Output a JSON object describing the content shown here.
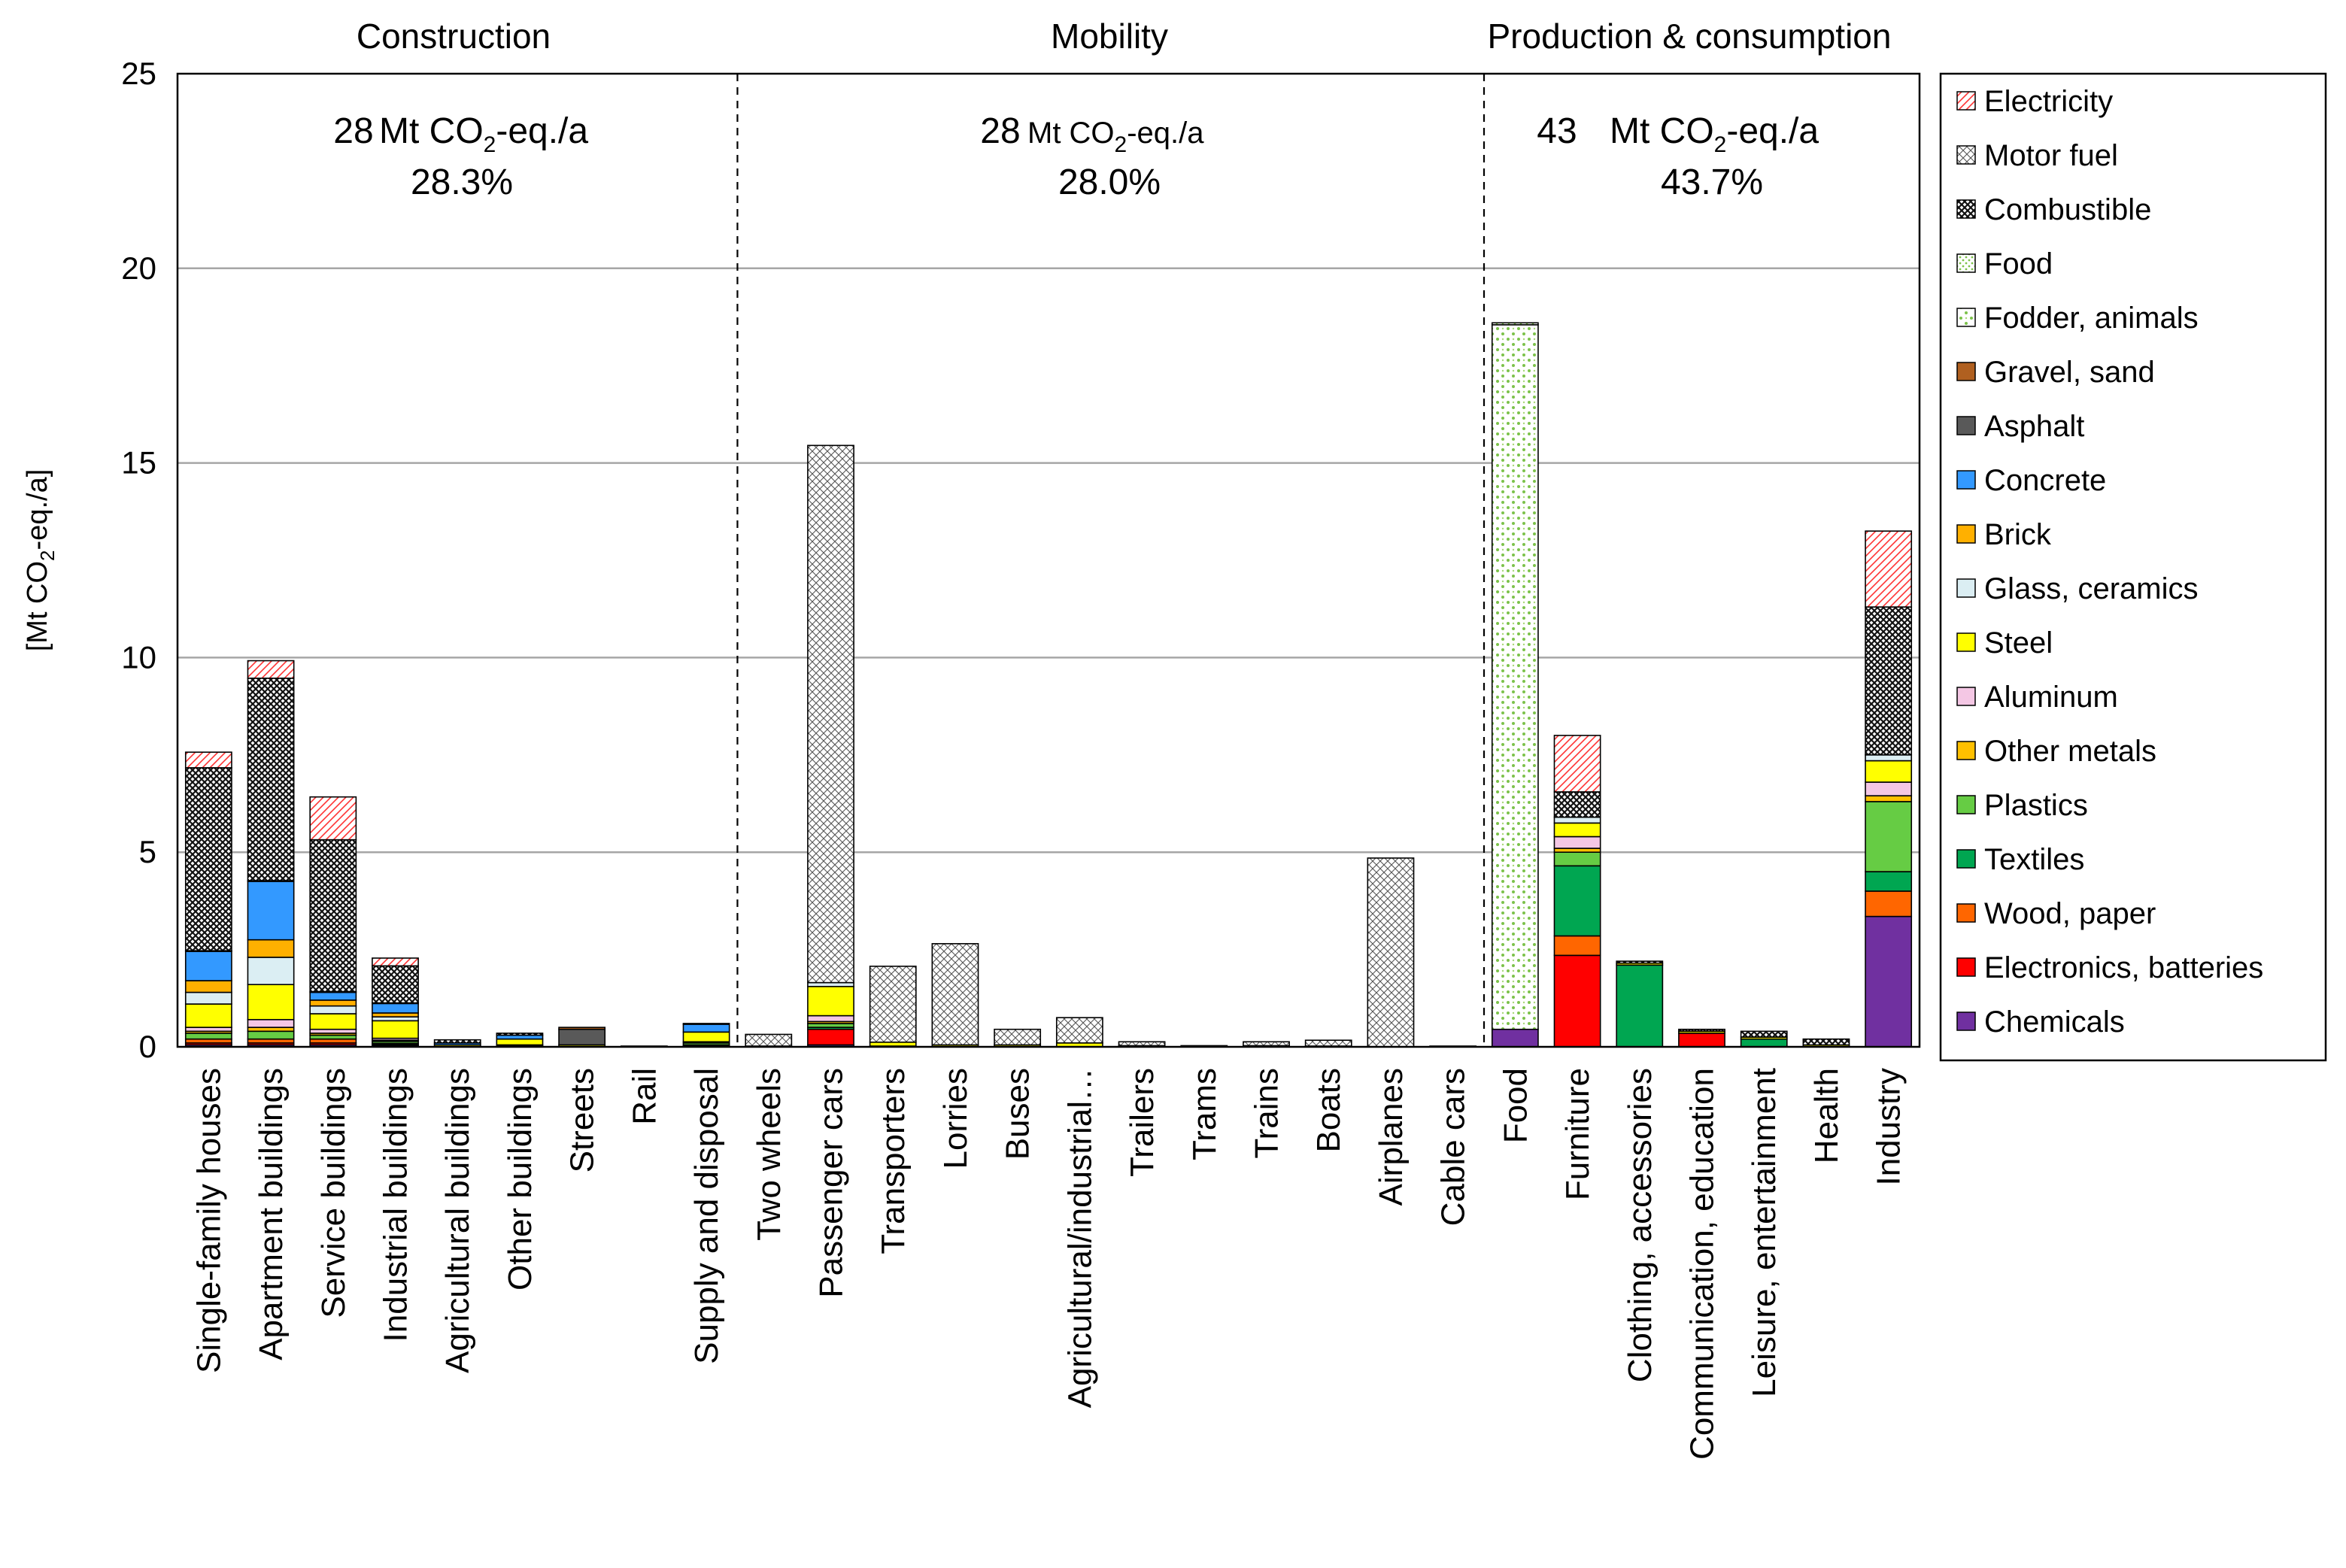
{
  "chart_data": {
    "type": "bar",
    "stacked": true,
    "ylabel": "[Mt CO2-eq./a]",
    "ylabel_parts": {
      "a": "[Mt CO",
      "sub": "2",
      "b": "-eq./a]"
    },
    "ylim": [
      0,
      25
    ],
    "yticks": [
      "0",
      "5",
      "10",
      "15",
      "20",
      "25"
    ],
    "grid": true,
    "legend_position": "right",
    "categories": [
      "Single-family houses",
      "Apartment buildings",
      "Service buildings",
      "Industrial buildings",
      "Agricultural buildings",
      "Other buildings",
      "Streets",
      "Rail",
      "Supply and disposal",
      "Two wheels",
      "Passenger cars",
      "Transporters",
      "Lorries",
      "Buses",
      "Agricultural/industrial…",
      "Trailers",
      "Trams",
      "Trains",
      "Boats",
      "Airplanes",
      "Cable cars",
      "Food",
      "Furniture",
      "Clothing, accessories",
      "Communication, education",
      "Leisure, entertainment",
      "Health",
      "Industry"
    ],
    "groups": [
      {
        "name": "Construction",
        "total_value": "28",
        "unit_a": "Mt CO",
        "unit_sub": "2",
        "unit_b": "-eq./a",
        "percent": "28.3%"
      },
      {
        "name": "Mobility",
        "total_value": "28",
        "unit_a": "Mt CO",
        "unit_sub": "2",
        "unit_b": "-eq./a",
        "percent": "28.0%"
      },
      {
        "name": "Production & consumption",
        "total_value": "43",
        "unit_a": "Mt CO",
        "unit_sub": "2",
        "unit_b": "-eq./a",
        "percent": "43.7%"
      }
    ],
    "series": [
      {
        "name": "Chemicals",
        "color": "#7030a0",
        "pattern": "solid",
        "values": [
          0.05,
          0.05,
          0.05,
          0.03,
          0,
          0,
          0,
          0,
          0.02,
          0,
          0.05,
          0.02,
          0,
          0,
          0,
          0,
          0,
          0,
          0,
          0,
          0,
          0.45,
          0,
          0,
          0,
          0,
          0,
          3.35
        ]
      },
      {
        "name": "Electronics, batteries",
        "color": "#ff0000",
        "pattern": "solid",
        "values": [
          0.05,
          0.05,
          0.05,
          0.03,
          0,
          0.02,
          0,
          0,
          0.03,
          0,
          0.4,
          0,
          0,
          0,
          0,
          0,
          0,
          0,
          0,
          0,
          0,
          0,
          2.35,
          0,
          0.35,
          0,
          0,
          0
        ]
      },
      {
        "name": "Wood, paper",
        "color": "#ff6600",
        "pattern": "solid",
        "values": [
          0.1,
          0.1,
          0.1,
          0.03,
          0,
          0,
          0,
          0,
          0,
          0,
          0,
          0,
          0,
          0,
          0,
          0,
          0,
          0,
          0,
          0,
          0,
          0,
          0.5,
          0,
          0,
          0,
          0,
          0.65
        ]
      },
      {
        "name": "Textiles",
        "color": "#00a651",
        "pattern": "solid",
        "values": [
          0,
          0,
          0,
          0,
          0,
          0,
          0,
          0,
          0,
          0,
          0.05,
          0,
          0,
          0,
          0,
          0,
          0,
          0,
          0,
          0,
          0,
          0,
          1.8,
          2.1,
          0,
          0.2,
          0,
          0.5
        ]
      },
      {
        "name": "Plastics",
        "color": "#66cc44",
        "pattern": "solid",
        "values": [
          0.15,
          0.2,
          0.1,
          0.05,
          0,
          0,
          0,
          0,
          0.05,
          0,
          0.1,
          0,
          0,
          0,
          0,
          0,
          0,
          0,
          0,
          0,
          0,
          0,
          0.35,
          0,
          0,
          0,
          0,
          1.8
        ]
      },
      {
        "name": "Other metals",
        "color": "#ffc000",
        "pattern": "solid",
        "values": [
          0.05,
          0.1,
          0.05,
          0.03,
          0,
          0,
          0,
          0,
          0,
          0,
          0.05,
          0,
          0,
          0,
          0,
          0,
          0,
          0,
          0,
          0,
          0,
          0,
          0.1,
          0,
          0,
          0,
          0,
          0.15
        ]
      },
      {
        "name": "Aluminum",
        "color": "#f4c7e4",
        "pattern": "solid",
        "values": [
          0.1,
          0.2,
          0.1,
          0.05,
          0,
          0.03,
          0,
          0,
          0.03,
          0,
          0.15,
          0,
          0,
          0,
          0,
          0,
          0,
          0,
          0,
          0,
          0,
          0,
          0.3,
          0,
          0,
          0,
          0,
          0.35
        ]
      },
      {
        "name": "Steel",
        "color": "#ffff00",
        "pattern": "solid",
        "values": [
          0.6,
          0.9,
          0.4,
          0.45,
          0.05,
          0.15,
          0.05,
          0,
          0.25,
          0.02,
          0.75,
          0.1,
          0.05,
          0.05,
          0.1,
          0.03,
          0,
          0.03,
          0.02,
          0,
          0,
          0,
          0.35,
          0.05,
          0.05,
          0.05,
          0.05,
          0.55
        ]
      },
      {
        "name": "Glass, ceramics",
        "color": "#dbeef3",
        "pattern": "solid",
        "values": [
          0.3,
          0.7,
          0.2,
          0.1,
          0,
          0,
          0,
          0,
          0,
          0,
          0.1,
          0,
          0,
          0,
          0,
          0,
          0,
          0,
          0,
          0,
          0,
          0,
          0.15,
          0,
          0,
          0,
          0,
          0.15
        ]
      },
      {
        "name": "Brick",
        "color": "#ffb000",
        "pattern": "solid",
        "values": [
          0.3,
          0.45,
          0.15,
          0.1,
          0,
          0,
          0,
          0,
          0,
          0,
          0,
          0,
          0,
          0,
          0,
          0,
          0,
          0,
          0,
          0,
          0,
          0,
          0,
          0,
          0,
          0,
          0,
          0
        ]
      },
      {
        "name": "Concrete",
        "color": "#3399ff",
        "pattern": "solid",
        "values": [
          0.75,
          1.5,
          0.2,
          0.25,
          0.05,
          0.1,
          0,
          0,
          0.2,
          0,
          0,
          0,
          0,
          0,
          0,
          0,
          0,
          0,
          0,
          0,
          0,
          0,
          0,
          0,
          0,
          0,
          0,
          0
        ]
      },
      {
        "name": "Asphalt",
        "color": "#595959",
        "pattern": "solid",
        "values": [
          0,
          0,
          0,
          0,
          0,
          0,
          0.4,
          0,
          0,
          0,
          0,
          0,
          0,
          0,
          0,
          0,
          0,
          0,
          0,
          0,
          0,
          0,
          0,
          0,
          0,
          0,
          0,
          0
        ]
      },
      {
        "name": "Gravel, sand",
        "color": "#b06020",
        "pattern": "solid",
        "values": [
          0.02,
          0.02,
          0.02,
          0.01,
          0,
          0,
          0.05,
          0.02,
          0.02,
          0,
          0,
          0,
          0,
          0,
          0,
          0,
          0,
          0,
          0,
          0,
          0,
          0,
          0,
          0,
          0,
          0,
          0,
          0
        ]
      },
      {
        "name": "Fodder, animals",
        "color": "#9ad05a",
        "pattern": "dots",
        "values": [
          0,
          0,
          0,
          0,
          0,
          0,
          0,
          0,
          0,
          0,
          0,
          0,
          0,
          0,
          0,
          0,
          0,
          0,
          0,
          0,
          0,
          18.1,
          0,
          0,
          0,
          0,
          0,
          0
        ]
      },
      {
        "name": "Food",
        "color": "#9ad05a",
        "pattern": "dotsfine",
        "values": [
          0,
          0,
          0,
          0,
          0,
          0,
          0,
          0,
          0,
          0,
          0,
          0,
          0,
          0,
          0,
          0,
          0,
          0,
          0,
          0,
          0,
          0.05,
          0,
          0,
          0,
          0,
          0,
          0
        ]
      },
      {
        "name": "Combustible",
        "color": "#000000",
        "pattern": "crossdense",
        "values": [
          4.7,
          5.2,
          3.9,
          0.95,
          0.08,
          0.05,
          0,
          0,
          0,
          0,
          0,
          0,
          0,
          0,
          0,
          0,
          0,
          0,
          0,
          0,
          0,
          0,
          0.65,
          0.05,
          0.05,
          0.15,
          0.15,
          3.8
        ]
      },
      {
        "name": "Motor fuel",
        "color": "#000000",
        "pattern": "crosslight",
        "values": [
          0,
          0,
          0,
          0,
          0,
          0,
          0,
          0,
          0,
          0.3,
          13.8,
          1.95,
          2.6,
          0.4,
          0.65,
          0.1,
          0.03,
          0.1,
          0.15,
          4.85,
          0.02,
          0,
          0,
          0,
          0,
          0,
          0,
          0
        ]
      },
      {
        "name": "Electricity",
        "color": "#ff0000",
        "pattern": "hatch",
        "values": [
          0.4,
          0.45,
          1.1,
          0.2,
          0,
          0,
          0,
          0,
          0,
          0,
          0,
          0,
          0,
          0,
          0,
          0,
          0,
          0,
          0,
          0,
          0,
          0,
          1.45,
          0,
          0,
          0,
          0,
          1.95
        ]
      }
    ]
  }
}
